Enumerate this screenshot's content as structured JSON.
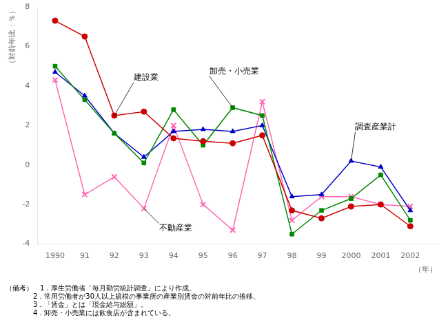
{
  "chart_data": {
    "type": "line",
    "xlabel": "（年）",
    "ylabel": "（対前年比：％）",
    "x": [
      1990,
      1991,
      1992,
      1993,
      1994,
      1995,
      1996,
      1997,
      1998,
      1999,
      2000,
      2001,
      2002
    ],
    "series": [
      {
        "name": "建設業",
        "color": "#cc0000",
        "marker": "circle",
        "values": [
          7.3,
          6.5,
          2.5,
          2.7,
          1.35,
          1.2,
          1.1,
          1.5,
          -2.3,
          -2.7,
          -2.1,
          -2.0,
          -3.1
        ]
      },
      {
        "name": "卸売・小売業",
        "color": "#008800",
        "marker": "square",
        "values": [
          5.0,
          3.3,
          1.6,
          0.1,
          2.8,
          1.0,
          2.9,
          2.5,
          -3.5,
          -2.3,
          -1.7,
          -0.5,
          -2.8
        ]
      },
      {
        "name": "調査産業計",
        "color": "#0000cc",
        "marker": "triangle",
        "values": [
          4.7,
          3.5,
          1.6,
          0.4,
          1.7,
          1.8,
          1.7,
          2.0,
          -1.6,
          -1.5,
          0.2,
          -0.1,
          -2.3
        ]
      },
      {
        "name": "不動産業",
        "color": "#ff69b4",
        "marker": "x",
        "values": [
          4.3,
          -1.5,
          -0.6,
          -2.2,
          2.0,
          -2.0,
          -3.3,
          3.2,
          -2.8,
          -1.6,
          -1.6,
          -2.0,
          -2.1
        ]
      }
    ],
    "xlim": [
      1989.4,
      2002.9
    ],
    "xticks": [
      1990,
      {
        "value": 1991,
        "label": "91"
      },
      {
        "value": 1992,
        "label": "92"
      },
      {
        "value": 1993,
        "label": "93"
      },
      {
        "value": 1994,
        "label": "94"
      },
      {
        "value": 1995,
        "label": "95"
      },
      {
        "value": 1996,
        "label": "96"
      },
      {
        "value": 1997,
        "label": "97"
      },
      {
        "value": 1998,
        "label": "98"
      },
      {
        "value": 1999,
        "label": "99"
      },
      2000,
      2001,
      2002
    ],
    "ylim": [
      -4,
      8
    ],
    "yticks": [
      -4,
      -2,
      0,
      2,
      4,
      6,
      8
    ],
    "grid": false,
    "notes": [
      "（備考）　1．厚生労働省「毎月勤労統計調査」により作成。",
      "　　　　2．常用労働者が30人以上規模の事業所の産業別賃金の対前年比の推移。",
      "　　　　3．「賃金」とは「現金給与総額」。",
      "　　　　4．卸売・小売業には飲食店が含まれている。"
    ]
  }
}
